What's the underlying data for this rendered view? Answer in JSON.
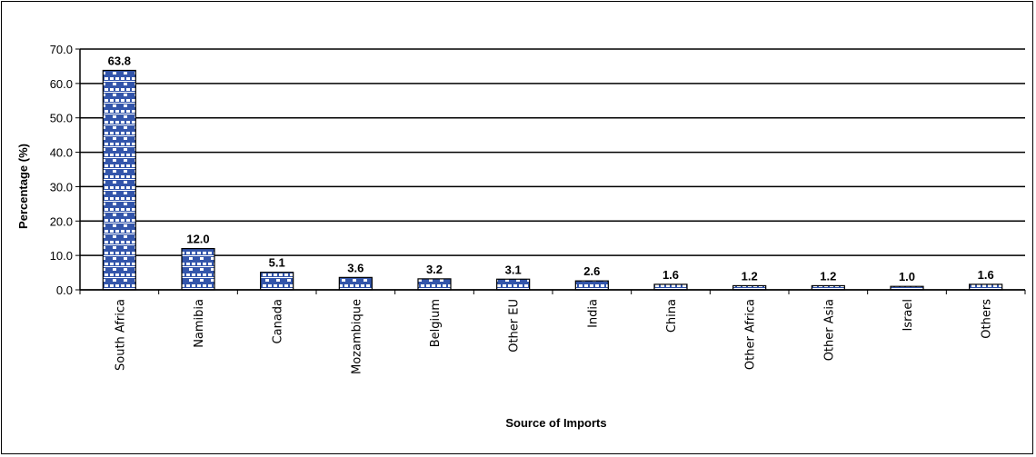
{
  "chart_data": {
    "type": "bar",
    "title": "",
    "xlabel": "Source of Imports",
    "ylabel": "Percentage (%)",
    "ylim": [
      0,
      70
    ],
    "yticks": [
      "0.0",
      "10.0",
      "20.0",
      "30.0",
      "40.0",
      "50.0",
      "60.0",
      "70.0"
    ],
    "grid": true,
    "categories": [
      "South Africa",
      "Namibia",
      "Canada",
      "Mozambique",
      "Belgium",
      "Other EU",
      "India",
      "China",
      "Other Africa",
      "Other Asia",
      "Israel",
      "Others"
    ],
    "values": [
      63.8,
      12.0,
      5.1,
      3.6,
      3.2,
      3.1,
      2.6,
      1.6,
      1.2,
      1.2,
      1.0,
      1.6
    ],
    "value_labels": [
      "63.8",
      "12.0",
      "5.1",
      "3.6",
      "3.2",
      "3.1",
      "2.6",
      "1.6",
      "1.2",
      "1.2",
      "1.0",
      "1.6"
    ],
    "bar_color": "#3355aa",
    "bar_pattern": "blue-white brick",
    "legend": "none"
  }
}
